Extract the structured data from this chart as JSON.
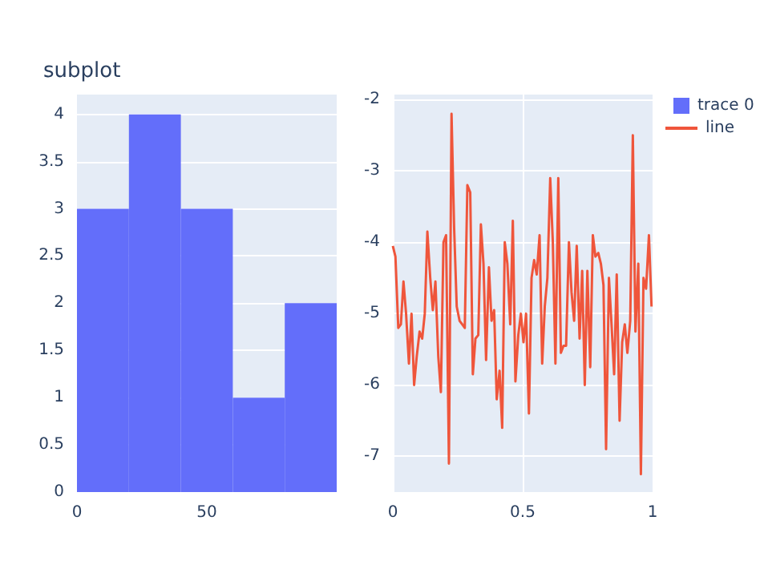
{
  "chart_data": [
    {
      "type": "histogram",
      "title": "subplot",
      "bins": [
        0,
        20,
        40,
        60,
        80,
        100
      ],
      "series": [
        {
          "name": "trace 0",
          "color": "#636efa",
          "values": [
            3,
            4,
            3,
            1,
            2
          ]
        }
      ],
      "xlim": [
        0,
        100
      ],
      "xticks": [
        0,
        50
      ],
      "ylim": [
        0,
        4.21
      ],
      "yticks": [
        0,
        0.5,
        1,
        1.5,
        2,
        2.5,
        3,
        3.5,
        4
      ],
      "grid": "y",
      "legend": "top right"
    },
    {
      "type": "line",
      "x": [
        0,
        0.01,
        0.021,
        0.031,
        0.041,
        0.051,
        0.062,
        0.072,
        0.082,
        0.092,
        0.103,
        0.113,
        0.123,
        0.133,
        0.144,
        0.154,
        0.164,
        0.175,
        0.185,
        0.195,
        0.205,
        0.216,
        0.226,
        0.236,
        0.246,
        0.257,
        0.267,
        0.277,
        0.287,
        0.298,
        0.308,
        0.318,
        0.329,
        0.339,
        0.349,
        0.359,
        0.37,
        0.38,
        0.39,
        0.4,
        0.411,
        0.421,
        0.431,
        0.441,
        0.452,
        0.462,
        0.472,
        0.483,
        0.493,
        0.503,
        0.513,
        0.524,
        0.534,
        0.544,
        0.554,
        0.565,
        0.575,
        0.585,
        0.595,
        0.606,
        0.616,
        0.626,
        0.637,
        0.647,
        0.657,
        0.667,
        0.678,
        0.688,
        0.698,
        0.708,
        0.719,
        0.729,
        0.739,
        0.749,
        0.76,
        0.77,
        0.78,
        0.791,
        0.801,
        0.811,
        0.821,
        0.832,
        0.842,
        0.852,
        0.862,
        0.873,
        0.883,
        0.893,
        0.903,
        0.914,
        0.924,
        0.934,
        0.945,
        0.955,
        0.965,
        0.975,
        0.986,
        0.996
      ],
      "series": [
        {
          "name": "line",
          "color": "#ef553b",
          "values": [
            -4.05,
            -4.2,
            -5.2,
            -5.15,
            -4.55,
            -5.0,
            -5.7,
            -5.0,
            -6.0,
            -5.6,
            -5.25,
            -5.35,
            -5.0,
            -3.85,
            -4.5,
            -4.95,
            -4.55,
            -5.6,
            -6.1,
            -4.0,
            -3.9,
            -7.1,
            -2.2,
            -3.8,
            -4.9,
            -5.1,
            -5.15,
            -5.2,
            -3.2,
            -3.3,
            -5.85,
            -5.35,
            -5.3,
            -3.75,
            -4.3,
            -5.65,
            -4.35,
            -5.1,
            -4.95,
            -6.2,
            -5.8,
            -6.6,
            -4.0,
            -4.3,
            -5.15,
            -3.7,
            -5.95,
            -5.3,
            -5.0,
            -5.4,
            -5.0,
            -6.4,
            -4.5,
            -4.25,
            -4.45,
            -3.9,
            -5.7,
            -4.9,
            -4.5,
            -3.1,
            -4.0,
            -5.7,
            -3.1,
            -5.55,
            -5.45,
            -5.45,
            -4.0,
            -4.7,
            -5.1,
            -4.05,
            -5.35,
            -4.4,
            -6.0,
            -4.4,
            -5.75,
            -3.9,
            -4.2,
            -4.15,
            -4.3,
            -4.6,
            -6.9,
            -4.5,
            -5.15,
            -5.85,
            -4.45,
            -6.5,
            -5.4,
            -5.15,
            -5.55,
            -5.1,
            -2.5,
            -5.25,
            -4.3,
            -7.25,
            -4.5,
            -4.65,
            -3.9,
            -4.9
          ]
        }
      ],
      "xlim": [
        0,
        1
      ],
      "xticks": [
        0,
        0.5,
        1
      ],
      "ylim": [
        -7.5,
        -1.93
      ],
      "yticks": [
        -7,
        -6,
        -5,
        -4,
        -3,
        -2
      ],
      "grid": true,
      "legend": "top right",
      "marker": "none"
    }
  ]
}
